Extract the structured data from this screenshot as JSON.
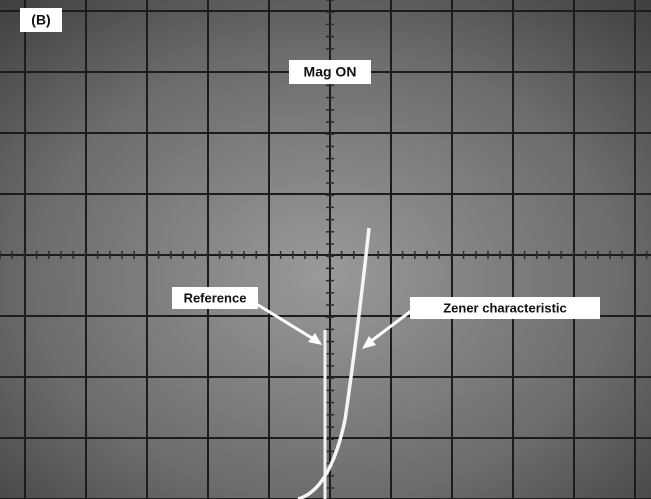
{
  "panel_label": "(B)",
  "mode_label": "Mag ON",
  "annotations": {
    "reference": "Reference",
    "zener": "Zener characteristic"
  }
}
